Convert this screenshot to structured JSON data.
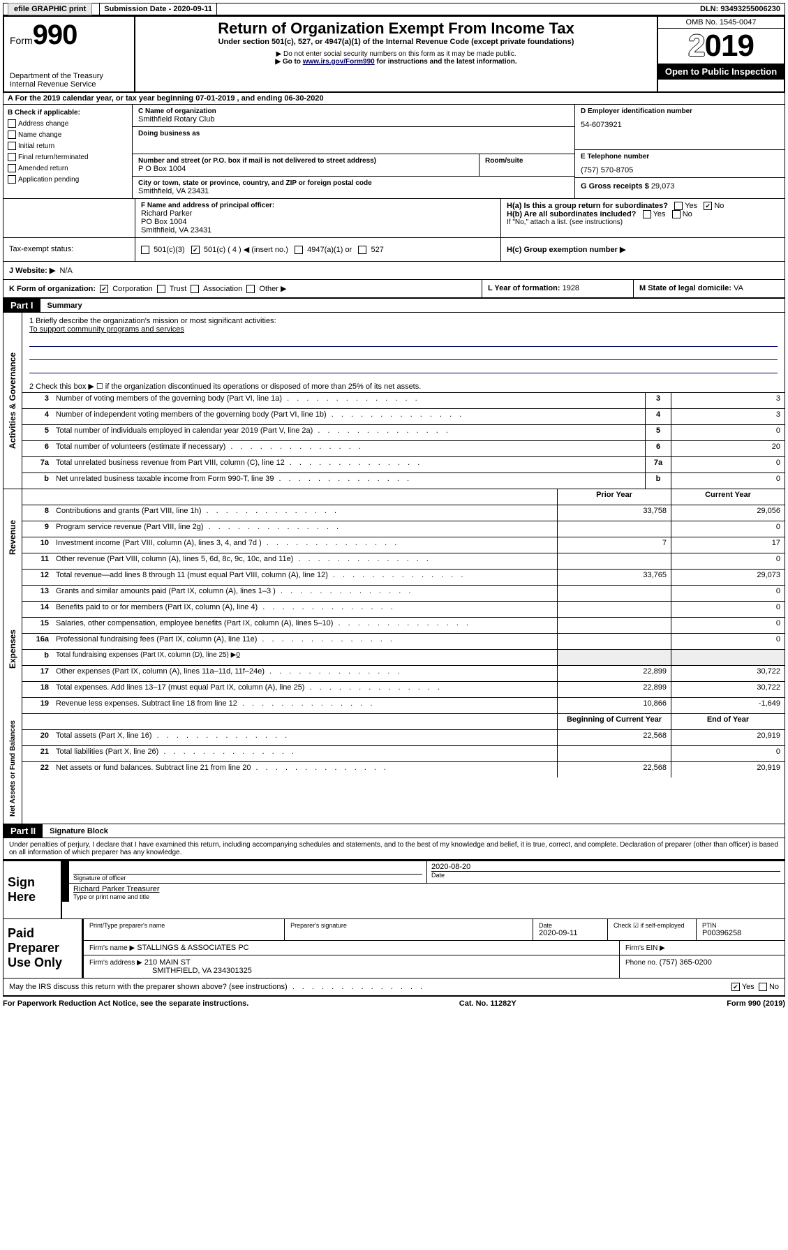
{
  "topbar": {
    "efile_label": "efile GRAPHIC print",
    "submission_label": "Submission Date - 2020-09-11",
    "dln": "DLN: 93493255006230"
  },
  "header": {
    "form_word": "Form",
    "form_num": "990",
    "dept": "Department of the Treasury",
    "irs": "Internal Revenue Service",
    "title": "Return of Organization Exempt From Income Tax",
    "subhead": "Under section 501(c), 527, or 4947(a)(1) of the Internal Revenue Code (except private foundations)",
    "ssn_note": "▶ Do not enter social security numbers on this form as it may be made public.",
    "goto_pre": "▶ Go to ",
    "goto_link": "www.irs.gov/Form990",
    "goto_post": " for instructions and the latest information.",
    "omb": "OMB No. 1545-0047",
    "year_prefix": "2",
    "year_suffix": "019",
    "open_public": "Open to Public Inspection"
  },
  "A": {
    "line": "A For the 2019 calendar year, or tax year beginning 07-01-2019   , and ending 06-30-2020"
  },
  "B": {
    "label": "B Check if applicable:",
    "opts": [
      "Address change",
      "Name change",
      "Initial return",
      "Final return/terminated",
      "Amended return",
      "Application pending"
    ]
  },
  "C": {
    "name_label": "C Name of organization",
    "name": "Smithfield Rotary Club",
    "dba_label": "Doing business as",
    "addr_label": "Number and street (or P.O. box if mail is not delivered to street address)",
    "room_label": "Room/suite",
    "addr": "P O Box 1004",
    "city_label": "City or town, state or province, country, and ZIP or foreign postal code",
    "city": "Smithfield, VA  23431"
  },
  "D": {
    "label": "D Employer identification number",
    "val": "54-6073921"
  },
  "E": {
    "label": "E Telephone number",
    "val": "(757) 570-8705"
  },
  "G": {
    "label": "G Gross receipts $",
    "val": "29,073"
  },
  "F": {
    "label": "F  Name and address of principal officer:",
    "name": "Richard Parker",
    "addr1": "PO Box 1004",
    "addr2": "Smithfield, VA  23431"
  },
  "H": {
    "a_label": "H(a)  Is this a group return for subordinates?",
    "b_label": "H(b)  Are all subordinates included?",
    "b_note": "If \"No,\" attach a list. (see instructions)",
    "c_label": "H(c)  Group exemption number ▶"
  },
  "I": {
    "label": "Tax-exempt status:",
    "opt1": "501(c)(3)",
    "opt2": "501(c) ( 4 ) ◀ (insert no.)",
    "opt3": "4947(a)(1) or",
    "opt4": "527"
  },
  "J": {
    "label": "J   Website: ▶",
    "val": "N/A"
  },
  "K": {
    "label": "K Form of organization:",
    "opts": [
      "Corporation",
      "Trust",
      "Association",
      "Other ▶"
    ]
  },
  "L": {
    "label": "L Year of formation:",
    "val": "1928"
  },
  "M": {
    "label": "M State of legal domicile:",
    "val": "VA"
  },
  "part1": {
    "hdr": "Part I",
    "title": "Summary",
    "q1_label": "1  Briefly describe the organization's mission or most significant activities:",
    "q1_val": "To support community programs and services",
    "q2": "2   Check this box ▶ ☐ if the organization discontinued its operations or disposed of more than 25% of its net assets.",
    "rows_gov": [
      {
        "n": "3",
        "d": "Number of voting members of the governing body (Part VI, line 1a)",
        "v": "3"
      },
      {
        "n": "4",
        "d": "Number of independent voting members of the governing body (Part VI, line 1b)",
        "v": "3"
      },
      {
        "n": "5",
        "d": "Total number of individuals employed in calendar year 2019 (Part V, line 2a)",
        "v": "0"
      },
      {
        "n": "6",
        "d": "Total number of volunteers (estimate if necessary)",
        "v": "20"
      },
      {
        "n": "7a",
        "d": "Total unrelated business revenue from Part VIII, column (C), line 12",
        "v": "0"
      },
      {
        "n": "b",
        "d": "Net unrelated business taxable income from Form 990-T, line 39",
        "v": "0"
      }
    ],
    "hdr_prior": "Prior Year",
    "hdr_curr": "Current Year",
    "rows_rev": [
      {
        "n": "8",
        "d": "Contributions and grants (Part VIII, line 1h)",
        "p": "33,758",
        "c": "29,056"
      },
      {
        "n": "9",
        "d": "Program service revenue (Part VIII, line 2g)",
        "p": "",
        "c": "0"
      },
      {
        "n": "10",
        "d": "Investment income (Part VIII, column (A), lines 3, 4, and 7d )",
        "p": "7",
        "c": "17"
      },
      {
        "n": "11",
        "d": "Other revenue (Part VIII, column (A), lines 5, 6d, 8c, 9c, 10c, and 11e)",
        "p": "",
        "c": "0"
      },
      {
        "n": "12",
        "d": "Total revenue—add lines 8 through 11 (must equal Part VIII, column (A), line 12)",
        "p": "33,765",
        "c": "29,073"
      }
    ],
    "rows_exp": [
      {
        "n": "13",
        "d": "Grants and similar amounts paid (Part IX, column (A), lines 1–3 )",
        "p": "",
        "c": "0"
      },
      {
        "n": "14",
        "d": "Benefits paid to or for members (Part IX, column (A), line 4)",
        "p": "",
        "c": "0"
      },
      {
        "n": "15",
        "d": "Salaries, other compensation, employee benefits (Part IX, column (A), lines 5–10)",
        "p": "",
        "c": "0"
      },
      {
        "n": "16a",
        "d": "Professional fundraising fees (Part IX, column (A), line 11e)",
        "p": "",
        "c": "0"
      }
    ],
    "row16b": {
      "n": "b",
      "d": "Total fundraising expenses (Part IX, column (D), line 25) ▶",
      "v": "0"
    },
    "rows_exp2": [
      {
        "n": "17",
        "d": "Other expenses (Part IX, column (A), lines 11a–11d, 11f–24e)",
        "p": "22,899",
        "c": "30,722"
      },
      {
        "n": "18",
        "d": "Total expenses. Add lines 13–17 (must equal Part IX, column (A), line 25)",
        "p": "22,899",
        "c": "30,722"
      },
      {
        "n": "19",
        "d": "Revenue less expenses. Subtract line 18 from line 12",
        "p": "10,866",
        "c": "-1,649"
      }
    ],
    "hdr_begin": "Beginning of Current Year",
    "hdr_end": "End of Year",
    "rows_net": [
      {
        "n": "20",
        "d": "Total assets (Part X, line 16)",
        "p": "22,568",
        "c": "20,919"
      },
      {
        "n": "21",
        "d": "Total liabilities (Part X, line 26)",
        "p": "",
        "c": "0"
      },
      {
        "n": "22",
        "d": "Net assets or fund balances. Subtract line 21 from line 20",
        "p": "22,568",
        "c": "20,919"
      }
    ],
    "vlabels": {
      "gov": "Activities & Governance",
      "rev": "Revenue",
      "exp": "Expenses",
      "net": "Net Assets or Fund Balances"
    }
  },
  "part2": {
    "hdr": "Part II",
    "title": "Signature Block",
    "perjury": "Under penalties of perjury, I declare that I have examined this return, including accompanying schedules and statements, and to the best of my knowledge and belief, it is true, correct, and complete. Declaration of preparer (other than officer) is based on all information of which preparer has any knowledge.",
    "sign_here": "Sign Here",
    "sig_officer": "Signature of officer",
    "sig_date": "2020-08-20",
    "sig_date_label": "Date",
    "sig_name": "Richard Parker Treasurer",
    "sig_name_label": "Type or print name and title",
    "paid_label": "Paid Preparer Use Only",
    "prep_name_label": "Print/Type preparer's name",
    "prep_sig_label": "Preparer's signature",
    "prep_date_label": "Date",
    "prep_date": "2020-09-11",
    "prep_check_label": "Check ☑ if self-employed",
    "ptin_label": "PTIN",
    "ptin": "P00396258",
    "firm_name_label": "Firm's name     ▶",
    "firm_name": "STALLINGS & ASSOCIATES PC",
    "firm_ein_label": "Firm's EIN ▶",
    "firm_addr_label": "Firm's address ▶",
    "firm_addr": "210 MAIN ST",
    "firm_city": "SMITHFIELD, VA  234301325",
    "firm_phone_label": "Phone no.",
    "firm_phone": "(757) 365-0200",
    "discuss": "May the IRS discuss this return with the preparer shown above? (see instructions)"
  },
  "footer": {
    "paperwork": "For Paperwork Reduction Act Notice, see the separate instructions.",
    "cat": "Cat. No. 11282Y",
    "form": "Form 990 (2019)"
  },
  "yesno": {
    "yes": "Yes",
    "no": "No"
  }
}
